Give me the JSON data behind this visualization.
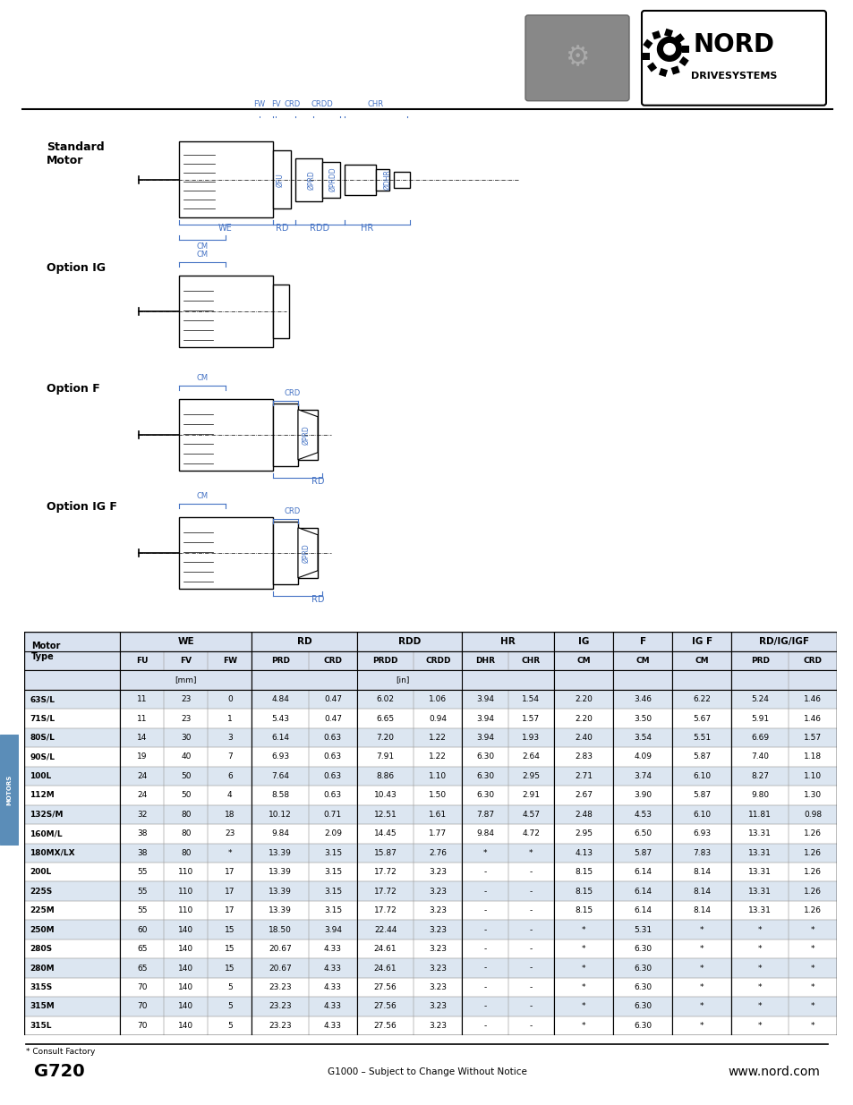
{
  "title_page": "G720",
  "subtitle": "G1000 – Subject to Change Without Notice",
  "website": "www.nord.com",
  "footnote": "* Consult Factory",
  "col_headers": [
    "FU",
    "FV",
    "FW",
    "PRD",
    "CRD",
    "PRDD",
    "CRDD",
    "DHR",
    "CHR",
    "CM",
    "CM",
    "CM",
    "PRD",
    "CRD"
  ],
  "rows": [
    [
      "63S/L",
      "11",
      "23",
      "0",
      "4.84",
      "0.47",
      "6.02",
      "1.06",
      "3.94",
      "1.54",
      "2.20",
      "3.46",
      "6.22",
      "5.24",
      "1.46"
    ],
    [
      "71S/L",
      "11",
      "23",
      "1",
      "5.43",
      "0.47",
      "6.65",
      "0.94",
      "3.94",
      "1.57",
      "2.20",
      "3.50",
      "5.67",
      "5.91",
      "1.46"
    ],
    [
      "80S/L",
      "14",
      "30",
      "3",
      "6.14",
      "0.63",
      "7.20",
      "1.22",
      "3.94",
      "1.93",
      "2.40",
      "3.54",
      "5.51",
      "6.69",
      "1.57"
    ],
    [
      "90S/L",
      "19",
      "40",
      "7",
      "6.93",
      "0.63",
      "7.91",
      "1.22",
      "6.30",
      "2.64",
      "2.83",
      "4.09",
      "5.87",
      "7.40",
      "1.18"
    ],
    [
      "100L",
      "24",
      "50",
      "6",
      "7.64",
      "0.63",
      "8.86",
      "1.10",
      "6.30",
      "2.95",
      "2.71",
      "3.74",
      "6.10",
      "8.27",
      "1.10"
    ],
    [
      "112M",
      "24",
      "50",
      "4",
      "8.58",
      "0.63",
      "10.43",
      "1.50",
      "6.30",
      "2.91",
      "2.67",
      "3.90",
      "5.87",
      "9.80",
      "1.30"
    ],
    [
      "132S/M",
      "32",
      "80",
      "18",
      "10.12",
      "0.71",
      "12.51",
      "1.61",
      "7.87",
      "4.57",
      "2.48",
      "4.53",
      "6.10",
      "11.81",
      "0.98"
    ],
    [
      "160M/L",
      "38",
      "80",
      "23",
      "9.84",
      "2.09",
      "14.45",
      "1.77",
      "9.84",
      "4.72",
      "2.95",
      "6.50",
      "6.93",
      "13.31",
      "1.26"
    ],
    [
      "180MX/LX",
      "38",
      "80",
      "*",
      "13.39",
      "3.15",
      "15.87",
      "2.76",
      "*",
      "*",
      "4.13",
      "5.87",
      "7.83",
      "13.31",
      "1.26"
    ],
    [
      "200L",
      "55",
      "110",
      "17",
      "13.39",
      "3.15",
      "17.72",
      "3.23",
      "-",
      "-",
      "8.15",
      "6.14",
      "8.14",
      "13.31",
      "1.26"
    ],
    [
      "225S",
      "55",
      "110",
      "17",
      "13.39",
      "3.15",
      "17.72",
      "3.23",
      "-",
      "-",
      "8.15",
      "6.14",
      "8.14",
      "13.31",
      "1.26"
    ],
    [
      "225M",
      "55",
      "110",
      "17",
      "13.39",
      "3.15",
      "17.72",
      "3.23",
      "-",
      "-",
      "8.15",
      "6.14",
      "8.14",
      "13.31",
      "1.26"
    ],
    [
      "250M",
      "60",
      "140",
      "15",
      "18.50",
      "3.94",
      "22.44",
      "3.23",
      "-",
      "-",
      "*",
      "5.31",
      "*",
      "*",
      "*"
    ],
    [
      "280S",
      "65",
      "140",
      "15",
      "20.67",
      "4.33",
      "24.61",
      "3.23",
      "-",
      "-",
      "*",
      "6.30",
      "*",
      "*",
      "*"
    ],
    [
      "280M",
      "65",
      "140",
      "15",
      "20.67",
      "4.33",
      "24.61",
      "3.23",
      "-",
      "-",
      "*",
      "6.30",
      "*",
      "*",
      "*"
    ],
    [
      "315S",
      "70",
      "140",
      "5",
      "23.23",
      "4.33",
      "27.56",
      "3.23",
      "-",
      "-",
      "*",
      "6.30",
      "*",
      "*",
      "*"
    ],
    [
      "315M",
      "70",
      "140",
      "5",
      "23.23",
      "4.33",
      "27.56",
      "3.23",
      "-",
      "-",
      "*",
      "6.30",
      "*",
      "*",
      "*"
    ],
    [
      "315L",
      "70",
      "140",
      "5",
      "23.23",
      "4.33",
      "27.56",
      "3.23",
      "-",
      "-",
      "*",
      "6.30",
      "*",
      "*",
      "*"
    ]
  ],
  "blue_color": "#4472C4",
  "alt_row_bg": "#DCE6F1",
  "header_bg": "#D9E2F0",
  "white_bg": "#FFFFFF",
  "motors_tab_color": "#5B8DB8",
  "diagram_label_color": "#4472C4"
}
